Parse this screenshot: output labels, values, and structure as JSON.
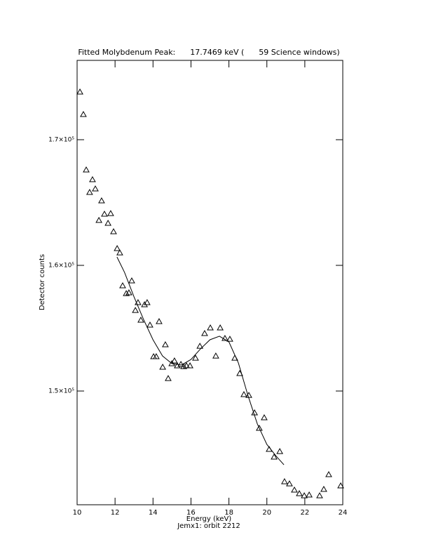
{
  "chart_data": {
    "type": "scatter",
    "title": "Fitted Molybdenum Peak:      17.7469 keV (      59 Science windows)",
    "x_label": "Energy (keV)",
    "subtitle": "Jemx1: orbit 2212",
    "y_label": "Detector counts",
    "xlim": [
      10,
      24
    ],
    "xticks": [
      10,
      12,
      14,
      16,
      18,
      20,
      22,
      24
    ],
    "ylim": [
      140950,
      176313
    ],
    "yticks": [
      {
        "value": 150000,
        "label": "1.5×10⁵"
      },
      {
        "value": 160000,
        "label": "1.6×10⁵"
      },
      {
        "value": 170000,
        "label": "1.7×10⁵"
      }
    ],
    "series": [
      {
        "type": "scatter",
        "color": "#000000",
        "x": [
          10.15,
          10.33,
          10.48,
          10.66,
          10.81,
          10.96,
          11.15,
          11.29,
          11.44,
          11.63,
          11.77,
          11.92,
          12.11,
          12.25,
          12.4,
          12.59,
          12.73,
          12.88,
          13.07,
          13.21,
          13.36,
          13.55,
          13.69,
          13.84,
          14.03,
          14.17,
          14.32,
          14.51,
          14.65,
          14.8,
          14.99,
          15.13,
          15.28,
          15.47,
          15.62,
          15.76,
          15.95,
          16.24,
          16.47,
          16.72,
          17.02,
          17.31,
          17.54,
          17.79,
          18.05,
          18.31,
          18.57,
          18.79,
          19.05,
          19.35,
          19.6,
          19.86,
          20.12,
          20.38,
          20.68,
          20.93,
          21.19,
          21.45,
          21.71,
          21.97,
          22.23,
          22.78,
          23.0,
          23.26,
          23.89
        ],
        "values": [
          173800,
          172010,
          167600,
          165810,
          166820,
          166090,
          163580,
          165140,
          164080,
          163350,
          164130,
          162680,
          161340,
          161000,
          158380,
          157760,
          157820,
          158770,
          156420,
          157040,
          155640,
          156870,
          157040,
          155250,
          152740,
          152740,
          155530,
          151900,
          153690,
          151000,
          152180,
          152400,
          152010,
          152120,
          151950,
          152010,
          152010,
          152620,
          153570,
          154580,
          155030,
          152790,
          155030,
          154190,
          154130,
          152620,
          151400,
          149720,
          149660,
          148270,
          147040,
          147880,
          145360,
          144750,
          145190,
          142790,
          142620,
          142120,
          141840,
          141670,
          141730,
          141670,
          142180,
          143350,
          142460
        ]
      },
      {
        "type": "line",
        "color": "#000000",
        "x": [
          12.1,
          12.5,
          13,
          13.5,
          14,
          14.5,
          15,
          15.5,
          16,
          16.5,
          17,
          17.5,
          18,
          18.5,
          19,
          19.5,
          20,
          20.5,
          20.9
        ],
        "values": [
          160670,
          159440,
          157490,
          155700,
          154080,
          152790,
          152180,
          152070,
          152510,
          153350,
          154080,
          154360,
          153910,
          152230,
          149660,
          147370,
          145750,
          144800,
          144130
        ]
      }
    ]
  }
}
